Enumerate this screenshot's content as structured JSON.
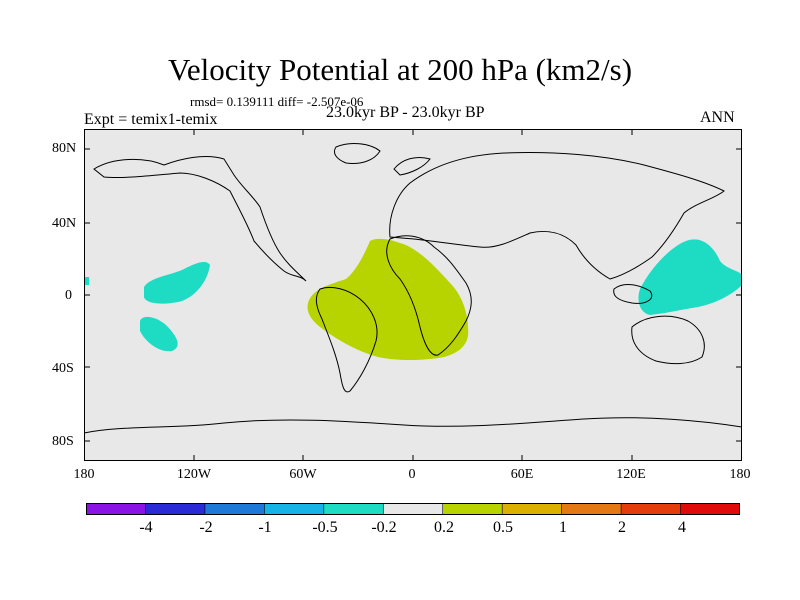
{
  "title": "Velocity Potential at 200 hPa (km2/s)",
  "stats": "rmsd= 0.139111 diff= -2.507e-06",
  "left_label": "Expt = temix1-temix",
  "center_label": "23.0kyr BP - 23.0kyr BP",
  "right_label": "ANN",
  "lat_labels": [
    "80N",
    "40N",
    "0",
    "40S",
    "80S"
  ],
  "lon_labels": [
    "180",
    "120W",
    "60W",
    "0",
    "60E",
    "120E",
    "180"
  ],
  "colorbar": {
    "labels": [
      "-4",
      "-2",
      "-1",
      "-0.5",
      "-0.2",
      "0.2",
      "0.5",
      "1",
      "2",
      "4"
    ],
    "colors": [
      "#8a14e6",
      "#2a2ad6",
      "#1e78d8",
      "#16b4e6",
      "#1edcc4",
      "#e8e8e8",
      "#b8d400",
      "#dcb000",
      "#e47812",
      "#e43c0a",
      "#e00a0a"
    ]
  },
  "map_colors": {
    "background": "#e8e8e8",
    "positive_region": "#b8d400",
    "negative_region": "#1edcc4"
  }
}
